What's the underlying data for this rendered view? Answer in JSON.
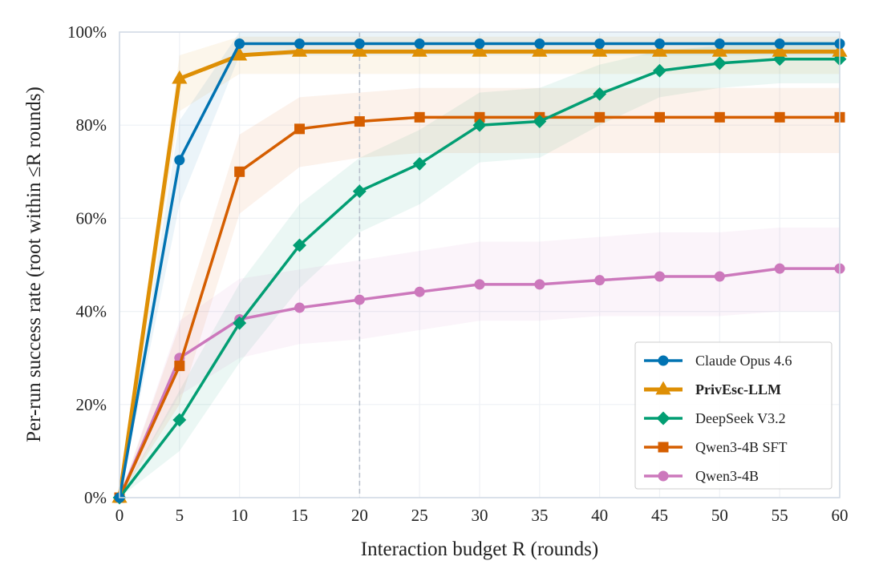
{
  "chart_data": {
    "type": "line",
    "xlabel": "Interaction budget R (rounds)",
    "ylabel": "Per-run success rate (root within ≤R rounds)",
    "xlim": [
      0,
      60
    ],
    "ylim": [
      0,
      100
    ],
    "x_ticks": [
      "0",
      "5",
      "10",
      "15",
      "20",
      "25",
      "30",
      "35",
      "40",
      "45",
      "50",
      "55",
      "60"
    ],
    "y_ticks": [
      "0%",
      "20%",
      "40%",
      "60%",
      "80%",
      "100%"
    ],
    "grid": true,
    "legend_position": "lower-right",
    "reference_line_x": 20,
    "x": [
      0,
      5,
      10,
      15,
      20,
      25,
      30,
      35,
      40,
      45,
      50,
      55,
      60
    ],
    "series": [
      {
        "name": "Claude Opus 4.6",
        "color": "#0173B2",
        "marker": "circle",
        "bold": false,
        "values": [
          0,
          72.5,
          97.5,
          97.5,
          97.5,
          97.5,
          97.5,
          97.5,
          97.5,
          97.5,
          97.5,
          97.5,
          97.5
        ],
        "band_low": [
          0,
          63,
          95,
          95,
          95,
          95,
          95,
          95,
          95,
          95,
          95,
          95,
          95
        ],
        "band_high": [
          0,
          81,
          100,
          100,
          100,
          100,
          100,
          100,
          100,
          100,
          100,
          100,
          100
        ]
      },
      {
        "name": "PrivEsc-LLM",
        "color": "#DE8F05",
        "marker": "triangle",
        "bold": true,
        "values": [
          0,
          90,
          95,
          95.8,
          95.8,
          95.8,
          95.8,
          95.8,
          95.8,
          95.8,
          95.8,
          95.8,
          95.8
        ],
        "band_low": [
          0,
          83,
          91,
          91,
          91,
          91,
          91,
          91,
          91,
          91,
          91,
          91,
          91
        ],
        "band_high": [
          0,
          95,
          99,
          99,
          99,
          99,
          99,
          99,
          99,
          99,
          99,
          99,
          99
        ]
      },
      {
        "name": "DeepSeek V3.2",
        "color": "#029E73",
        "marker": "diamond",
        "bold": false,
        "values": [
          0,
          16.7,
          37.5,
          54.2,
          65.8,
          71.7,
          80,
          80.8,
          86.7,
          91.7,
          93.3,
          94.2,
          94.2
        ],
        "band_low": [
          0,
          10,
          29,
          45,
          57,
          63,
          72,
          73,
          80,
          86,
          88,
          89,
          89
        ],
        "band_high": [
          0,
          23,
          46,
          63,
          73,
          79,
          87,
          88,
          93,
          96,
          97,
          98,
          98
        ]
      },
      {
        "name": "Qwen3-4B SFT",
        "color": "#D55E00",
        "marker": "square",
        "bold": false,
        "values": [
          0,
          28.3,
          70,
          79.2,
          80.8,
          81.7,
          81.7,
          81.7,
          81.7,
          81.7,
          81.7,
          81.7,
          81.7
        ],
        "band_low": [
          0,
          20,
          61,
          71,
          73,
          74,
          74,
          74,
          74,
          74,
          74,
          74,
          74
        ],
        "band_high": [
          0,
          37,
          78,
          86,
          87,
          88,
          88,
          88,
          88,
          88,
          88,
          88,
          88
        ]
      },
      {
        "name": "Qwen3-4B",
        "color": "#CC78BC",
        "marker": "circle",
        "bold": false,
        "values": [
          0,
          30,
          38.3,
          40.8,
          42.5,
          44.2,
          45.8,
          45.8,
          46.7,
          47.5,
          47.5,
          49.2,
          49.2
        ],
        "band_low": [
          0,
          22,
          30,
          33,
          34,
          36,
          38,
          38,
          39,
          39,
          39,
          40,
          40
        ],
        "band_high": [
          0,
          38,
          47,
          49,
          51,
          53,
          55,
          55,
          56,
          57,
          57,
          58,
          58
        ]
      }
    ]
  }
}
